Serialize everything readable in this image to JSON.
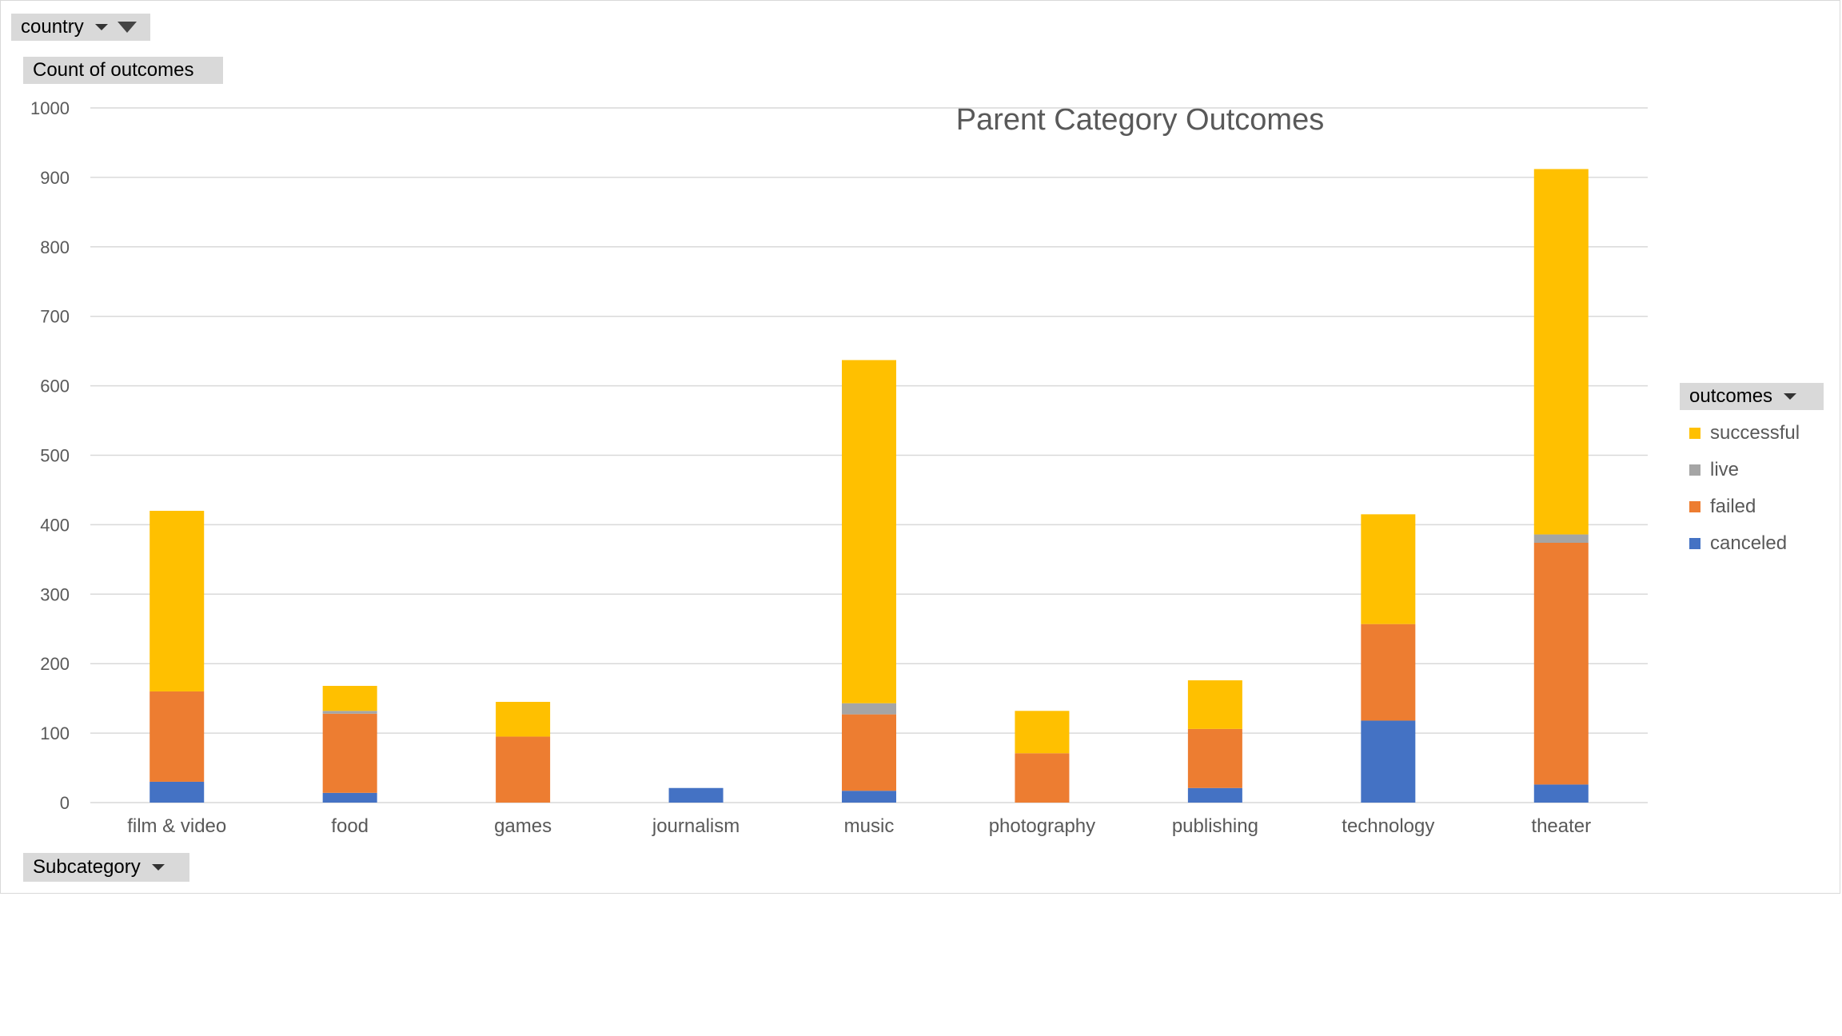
{
  "pivot": {
    "filter_label": "country",
    "values_label": "Count of outcomes",
    "axis_label": "Subcategory",
    "legend_label": "outcomes"
  },
  "colors": {
    "canceled": "#4472c4",
    "failed": "#ed7d31",
    "live": "#a5a5a5",
    "successful": "#ffc000",
    "grid": "#d9d9d9"
  },
  "chart_data": {
    "type": "bar",
    "stacked": true,
    "title": "Parent Category Outcomes",
    "xlabel": "",
    "ylabel": "",
    "ylim": [
      0,
      1000
    ],
    "yticks": [
      0,
      100,
      200,
      300,
      400,
      500,
      600,
      700,
      800,
      900,
      1000
    ],
    "grid": true,
    "legend_position": "right",
    "categories": [
      "film & video",
      "food",
      "games",
      "journalism",
      "music",
      "photography",
      "publishing",
      "technology",
      "theater"
    ],
    "series": [
      {
        "name": "canceled",
        "values": [
          30,
          14,
          0,
          21,
          17,
          0,
          21,
          118,
          26
        ]
      },
      {
        "name": "failed",
        "values": [
          130,
          114,
          95,
          0,
          110,
          71,
          85,
          139,
          348
        ]
      },
      {
        "name": "live",
        "values": [
          0,
          4,
          0,
          0,
          16,
          0,
          0,
          0,
          12
        ]
      },
      {
        "name": "successful",
        "values": [
          260,
          36,
          50,
          0,
          494,
          61,
          70,
          158,
          526
        ]
      }
    ],
    "legend_order": [
      "successful",
      "live",
      "failed",
      "canceled"
    ]
  }
}
